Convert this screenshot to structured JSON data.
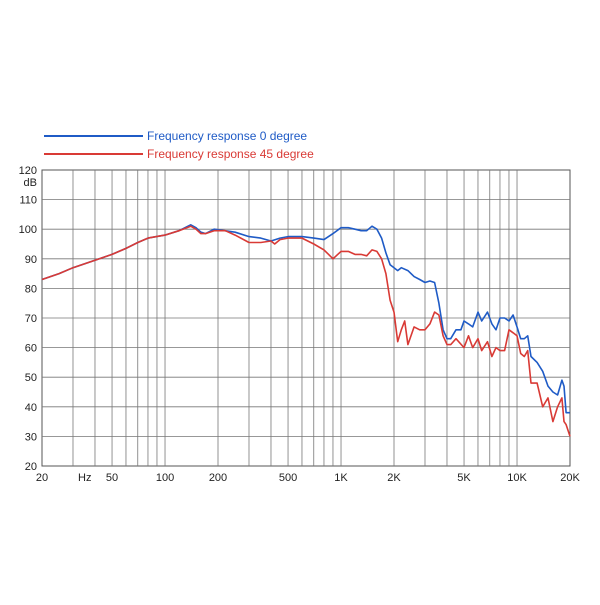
{
  "chart_data": {
    "type": "line",
    "xscale": "log",
    "xlim": [
      20,
      20000
    ],
    "ylim": [
      20,
      120
    ],
    "yunit": "dB",
    "grid": true,
    "legend_position": "top-left",
    "x_tick_labels": [
      {
        "value": 20,
        "label": "20"
      },
      {
        "value": 35,
        "label": "Hz"
      },
      {
        "value": 50,
        "label": "50"
      },
      {
        "value": 100,
        "label": "100"
      },
      {
        "value": 200,
        "label": "200"
      },
      {
        "value": 500,
        "label": "500"
      },
      {
        "value": 1000,
        "label": "1K"
      },
      {
        "value": 2000,
        "label": "2K"
      },
      {
        "value": 5000,
        "label": "5K"
      },
      {
        "value": 10000,
        "label": "10K"
      },
      {
        "value": 20000,
        "label": "20K"
      }
    ],
    "y_tick_labels": [
      "20",
      "30",
      "40",
      "50",
      "60",
      "70",
      "80",
      "90",
      "100",
      "110",
      "120"
    ],
    "series": [
      {
        "name": "Frequency response 0 degree",
        "color": "#1f5bc6",
        "points": [
          [
            20,
            83
          ],
          [
            25,
            85
          ],
          [
            30,
            87
          ],
          [
            40,
            89.5
          ],
          [
            50,
            91.5
          ],
          [
            60,
            93.5
          ],
          [
            70,
            95.5
          ],
          [
            80,
            97
          ],
          [
            100,
            98
          ],
          [
            120,
            99.5
          ],
          [
            140,
            101.5
          ],
          [
            150,
            100.5
          ],
          [
            160,
            99
          ],
          [
            170,
            98.5
          ],
          [
            190,
            100
          ],
          [
            250,
            99
          ],
          [
            300,
            97.5
          ],
          [
            350,
            97
          ],
          [
            400,
            96
          ],
          [
            450,
            97
          ],
          [
            500,
            97.5
          ],
          [
            600,
            97.5
          ],
          [
            700,
            97
          ],
          [
            800,
            96.5
          ],
          [
            900,
            98.5
          ],
          [
            1000,
            100.5
          ],
          [
            1100,
            100.5
          ],
          [
            1200,
            100
          ],
          [
            1300,
            99.5
          ],
          [
            1400,
            99.5
          ],
          [
            1500,
            101
          ],
          [
            1600,
            100
          ],
          [
            1700,
            97
          ],
          [
            1800,
            92
          ],
          [
            1900,
            88
          ],
          [
            2000,
            87
          ],
          [
            2100,
            86
          ],
          [
            2200,
            87
          ],
          [
            2400,
            86
          ],
          [
            2600,
            84
          ],
          [
            2800,
            83
          ],
          [
            3000,
            82
          ],
          [
            3200,
            82.5
          ],
          [
            3400,
            82
          ],
          [
            3600,
            75
          ],
          [
            3800,
            66
          ],
          [
            4000,
            63
          ],
          [
            4200,
            63
          ],
          [
            4500,
            66
          ],
          [
            4800,
            66
          ],
          [
            5000,
            69
          ],
          [
            5300,
            68
          ],
          [
            5600,
            67
          ],
          [
            6000,
            72
          ],
          [
            6300,
            69
          ],
          [
            6800,
            72
          ],
          [
            7200,
            68
          ],
          [
            7600,
            66
          ],
          [
            8000,
            70
          ],
          [
            8500,
            70
          ],
          [
            9000,
            69
          ],
          [
            9500,
            71
          ],
          [
            10000,
            67
          ],
          [
            10500,
            63
          ],
          [
            11000,
            63
          ],
          [
            11500,
            64
          ],
          [
            12000,
            57
          ],
          [
            13000,
            55
          ],
          [
            14000,
            52
          ],
          [
            15000,
            47
          ],
          [
            16000,
            45
          ],
          [
            17000,
            44
          ],
          [
            18000,
            49
          ],
          [
            18500,
            47
          ],
          [
            19000,
            38
          ],
          [
            20000,
            38
          ]
        ]
      },
      {
        "name": "Frequency response 45 degree",
        "color": "#d93a35",
        "points": [
          [
            20,
            83
          ],
          [
            25,
            85
          ],
          [
            30,
            87
          ],
          [
            40,
            89.5
          ],
          [
            50,
            91.5
          ],
          [
            60,
            93.5
          ],
          [
            70,
            95.5
          ],
          [
            80,
            97
          ],
          [
            100,
            98
          ],
          [
            120,
            99.5
          ],
          [
            140,
            101
          ],
          [
            150,
            100
          ],
          [
            160,
            98.5
          ],
          [
            170,
            98.5
          ],
          [
            190,
            99.5
          ],
          [
            220,
            99.5
          ],
          [
            250,
            98
          ],
          [
            300,
            95.5
          ],
          [
            350,
            95.5
          ],
          [
            400,
            96
          ],
          [
            420,
            95
          ],
          [
            450,
            96.5
          ],
          [
            500,
            97
          ],
          [
            600,
            97
          ],
          [
            700,
            95
          ],
          [
            800,
            93
          ],
          [
            900,
            90
          ],
          [
            1000,
            92.5
          ],
          [
            1100,
            92.5
          ],
          [
            1200,
            91.5
          ],
          [
            1300,
            91.5
          ],
          [
            1400,
            91
          ],
          [
            1500,
            93
          ],
          [
            1600,
            92.5
          ],
          [
            1700,
            90
          ],
          [
            1800,
            85
          ],
          [
            1900,
            76
          ],
          [
            2000,
            72
          ],
          [
            2100,
            62
          ],
          [
            2200,
            66
          ],
          [
            2300,
            69
          ],
          [
            2400,
            61
          ],
          [
            2600,
            67
          ],
          [
            2800,
            66
          ],
          [
            3000,
            66
          ],
          [
            3200,
            68
          ],
          [
            3400,
            72
          ],
          [
            3600,
            71
          ],
          [
            3800,
            64
          ],
          [
            4000,
            61
          ],
          [
            4200,
            61
          ],
          [
            4500,
            63
          ],
          [
            5000,
            60
          ],
          [
            5300,
            64
          ],
          [
            5600,
            60
          ],
          [
            6000,
            63
          ],
          [
            6300,
            59
          ],
          [
            6800,
            62
          ],
          [
            7200,
            57
          ],
          [
            7600,
            60
          ],
          [
            8000,
            59
          ],
          [
            8500,
            59
          ],
          [
            9000,
            66
          ],
          [
            9500,
            65
          ],
          [
            10000,
            64
          ],
          [
            10500,
            58
          ],
          [
            11000,
            57
          ],
          [
            11500,
            59
          ],
          [
            12000,
            48
          ],
          [
            13000,
            48
          ],
          [
            14000,
            40
          ],
          [
            15000,
            43
          ],
          [
            16000,
            35
          ],
          [
            17000,
            40
          ],
          [
            18000,
            43
          ],
          [
            18500,
            35
          ],
          [
            19000,
            34
          ],
          [
            20000,
            30
          ]
        ]
      }
    ]
  }
}
